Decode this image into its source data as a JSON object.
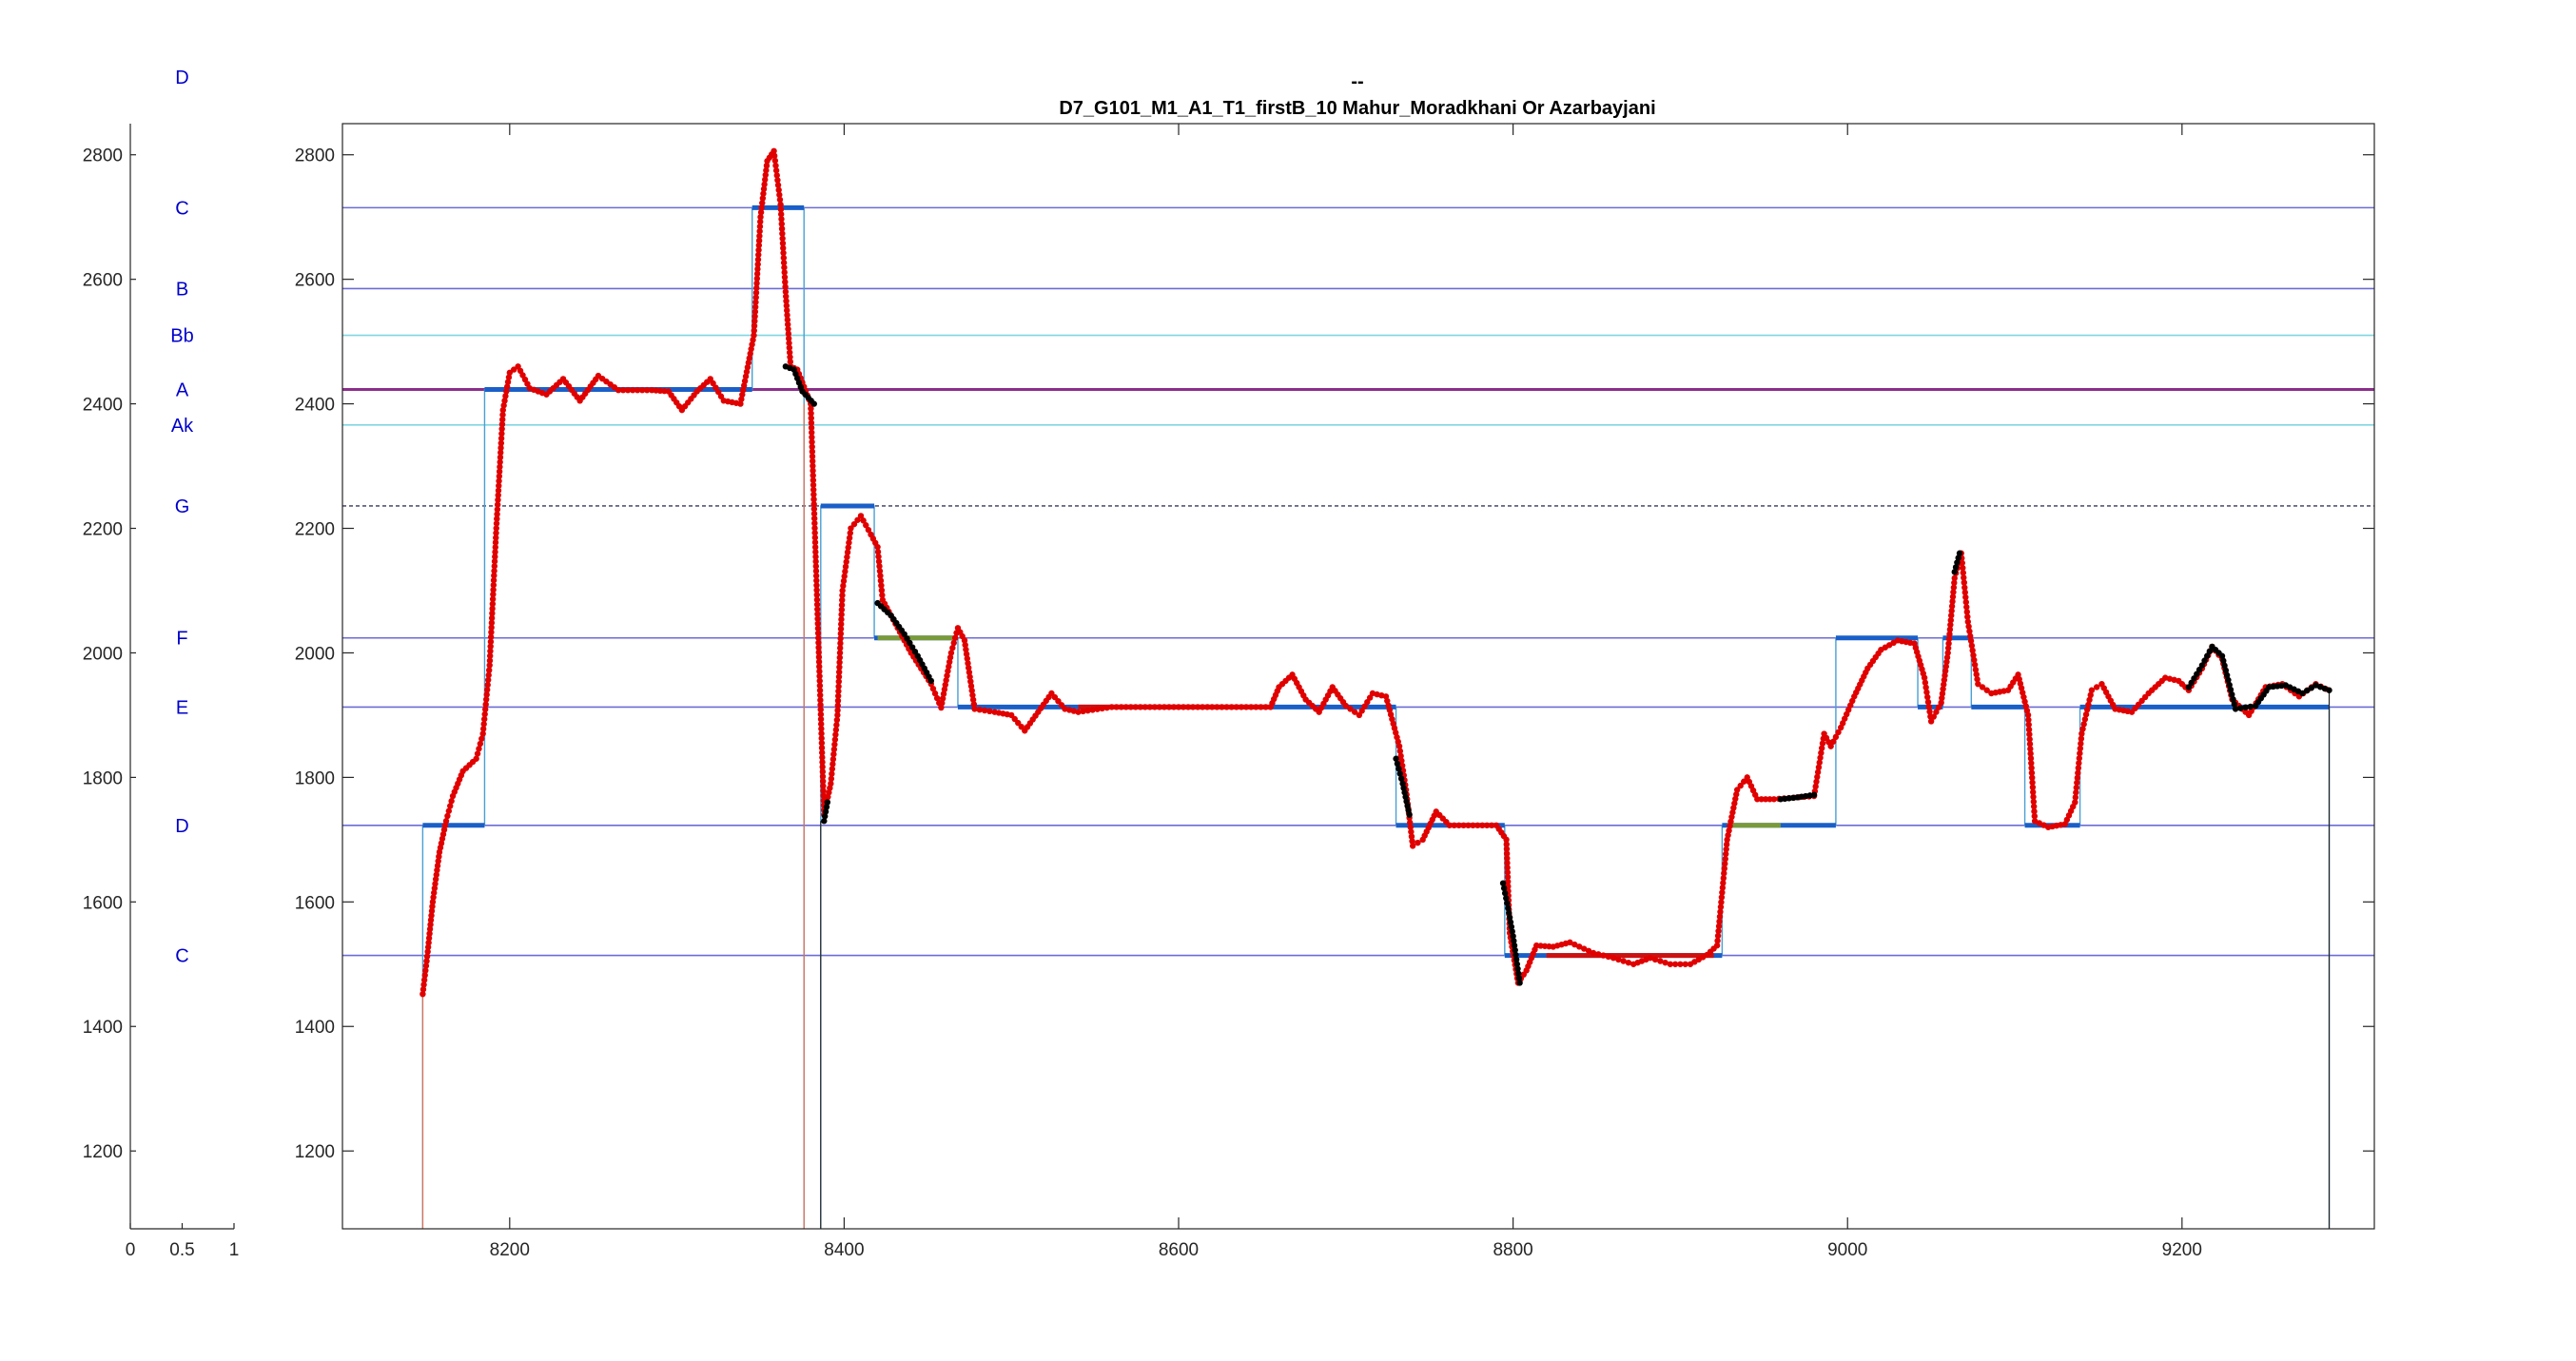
{
  "figure": {
    "title_line1": "--",
    "title_line2": "D7_G101_M1_A1_T1_firstB_10 Mahur_Moradkhani Or Azarbayjani"
  },
  "left_axis": {
    "xlim": [
      0,
      1
    ],
    "ylim": [
      1075,
      2850
    ],
    "x_ticks": [
      {
        "v": 0,
        "label": "0"
      },
      {
        "v": 0.5,
        "label": "0.5"
      },
      {
        "v": 1,
        "label": "1"
      }
    ],
    "y_ticks": [
      {
        "v": 1200,
        "label": "1200"
      },
      {
        "v": 1400,
        "label": "1400"
      },
      {
        "v": 1600,
        "label": "1600"
      },
      {
        "v": 1800,
        "label": "1800"
      },
      {
        "v": 2000,
        "label": "2000"
      },
      {
        "v": 2200,
        "label": "2200"
      },
      {
        "v": 2400,
        "label": "2400"
      },
      {
        "v": 2600,
        "label": "2600"
      },
      {
        "v": 2800,
        "label": "2800"
      }
    ],
    "note_labels": [
      {
        "y": 1514,
        "label": "C"
      },
      {
        "y": 1723,
        "label": "D"
      },
      {
        "y": 1913,
        "label": "E"
      },
      {
        "y": 2024,
        "label": "F"
      },
      {
        "y": 2236,
        "label": "G"
      },
      {
        "y": 2366,
        "label": "Ak"
      },
      {
        "y": 2423,
        "label": "A"
      },
      {
        "y": 2510,
        "label": "Bb"
      },
      {
        "y": 2585,
        "label": "B"
      },
      {
        "y": 2715,
        "label": "C"
      },
      {
        "y": 2925,
        "label": "D"
      }
    ]
  },
  "chart_data": {
    "type": "line",
    "title": "D7_G101_M1_A1_T1_firstB_10 Mahur_Moradkhani Or Azarbayjani",
    "xlim": [
      8100,
      9315
    ],
    "ylim": [
      1075,
      2850
    ],
    "x_ticks": [
      {
        "v": 8200,
        "label": "8200"
      },
      {
        "v": 8400,
        "label": "8400"
      },
      {
        "v": 8600,
        "label": "8600"
      },
      {
        "v": 8800,
        "label": "8800"
      },
      {
        "v": 9000,
        "label": "9000"
      },
      {
        "v": 9200,
        "label": "9200"
      }
    ],
    "y_ticks": [
      {
        "v": 1200,
        "label": "1200"
      },
      {
        "v": 1400,
        "label": "1400"
      },
      {
        "v": 1600,
        "label": "1600"
      },
      {
        "v": 1800,
        "label": "1800"
      },
      {
        "v": 2000,
        "label": "2000"
      },
      {
        "v": 2200,
        "label": "2200"
      },
      {
        "v": 2400,
        "label": "2400"
      },
      {
        "v": 2600,
        "label": "2600"
      },
      {
        "v": 2800,
        "label": "2800"
      }
    ],
    "grid": false,
    "reference_lines": [
      {
        "y": 1514,
        "color": "#6b6bd6",
        "style": "solid"
      },
      {
        "y": 1723,
        "color": "#6b6bd6",
        "style": "solid"
      },
      {
        "y": 1913,
        "color": "#6b6bd6",
        "style": "solid"
      },
      {
        "y": 2024,
        "color": "#6b6bd6",
        "style": "solid"
      },
      {
        "y": 2236,
        "color": "#555577",
        "style": "dashed"
      },
      {
        "y": 2366,
        "color": "#7fd6e0",
        "style": "solid"
      },
      {
        "y": 2423,
        "color": "#8b2f8b",
        "style": "thick"
      },
      {
        "y": 2510,
        "color": "#7fd6e0",
        "style": "solid"
      },
      {
        "y": 2585,
        "color": "#6b6bd6",
        "style": "solid"
      },
      {
        "y": 2715,
        "color": "#6b6bd6",
        "style": "solid"
      }
    ],
    "pitch_track": {
      "name": "pitch",
      "color": "#e00000",
      "points": [
        [
          8148,
          1452
        ],
        [
          8151,
          1520
        ],
        [
          8154,
          1600
        ],
        [
          8158,
          1680
        ],
        [
          8162,
          1730
        ],
        [
          8166,
          1770
        ],
        [
          8172,
          1810
        ],
        [
          8180,
          1830
        ],
        [
          8184,
          1870
        ],
        [
          8188,
          1980
        ],
        [
          8192,
          2200
        ],
        [
          8196,
          2390
        ],
        [
          8200,
          2450
        ],
        [
          8205,
          2460
        ],
        [
          8212,
          2425
        ],
        [
          8222,
          2415
        ],
        [
          8232,
          2440
        ],
        [
          8242,
          2405
        ],
        [
          8253,
          2445
        ],
        [
          8265,
          2422
        ],
        [
          8285,
          2422
        ],
        [
          8295,
          2420
        ],
        [
          8303,
          2390
        ],
        [
          8312,
          2420
        ],
        [
          8320,
          2440
        ],
        [
          8328,
          2405
        ],
        [
          8338,
          2400
        ],
        [
          8346,
          2510
        ],
        [
          8350,
          2700
        ],
        [
          8354,
          2790
        ],
        [
          8358,
          2806
        ],
        [
          8362,
          2720
        ],
        [
          8365,
          2580
        ],
        [
          8368,
          2460
        ],
        [
          8372,
          2455
        ],
        [
          8380,
          2400
        ],
        [
          8388,
          1740
        ],
        [
          8392,
          1790
        ],
        [
          8396,
          1900
        ],
        [
          8399,
          2100
        ],
        [
          8404,
          2200
        ],
        [
          8410,
          2220
        ],
        [
          8416,
          2190
        ],
        [
          8420,
          2170
        ],
        [
          8423,
          2085
        ],
        [
          8428,
          2060
        ],
        [
          8440,
          2000
        ],
        [
          8452,
          1950
        ],
        [
          8458,
          1912
        ],
        [
          8464,
          2000
        ],
        [
          8468,
          2040
        ],
        [
          8472,
          2020
        ],
        [
          8478,
          1910
        ],
        [
          8490,
          1905
        ],
        [
          8500,
          1900
        ],
        [
          8508,
          1875
        ],
        [
          8516,
          1905
        ],
        [
          8524,
          1935
        ],
        [
          8532,
          1910
        ],
        [
          8540,
          1905
        ],
        [
          8560,
          1913
        ],
        [
          8620,
          1913
        ],
        [
          8655,
          1913
        ],
        [
          8660,
          1945
        ],
        [
          8668,
          1965
        ],
        [
          8676,
          1925
        ],
        [
          8684,
          1905
        ],
        [
          8692,
          1945
        ],
        [
          8700,
          1915
        ],
        [
          8708,
          1900
        ],
        [
          8716,
          1935
        ],
        [
          8724,
          1930
        ],
        [
          8732,
          1850
        ],
        [
          8736,
          1780
        ],
        [
          8740,
          1690
        ],
        [
          8746,
          1700
        ],
        [
          8754,
          1745
        ],
        [
          8762,
          1723
        ],
        [
          8790,
          1723
        ],
        [
          8796,
          1700
        ],
        [
          8798,
          1550
        ],
        [
          8803,
          1470
        ],
        [
          8808,
          1490
        ],
        [
          8814,
          1530
        ],
        [
          8824,
          1528
        ],
        [
          8834,
          1535
        ],
        [
          8848,
          1518
        ],
        [
          8860,
          1510
        ],
        [
          8872,
          1500
        ],
        [
          8882,
          1510
        ],
        [
          8894,
          1500
        ],
        [
          8906,
          1500
        ],
        [
          8916,
          1515
        ],
        [
          8922,
          1530
        ],
        [
          8928,
          1700
        ],
        [
          8934,
          1780
        ],
        [
          8940,
          1800
        ],
        [
          8946,
          1765
        ],
        [
          8956,
          1765
        ],
        [
          8980,
          1770
        ],
        [
          8986,
          1870
        ],
        [
          8990,
          1850
        ],
        [
          8996,
          1880
        ],
        [
          9004,
          1930
        ],
        [
          9012,
          1975
        ],
        [
          9020,
          2005
        ],
        [
          9030,
          2020
        ],
        [
          9040,
          2015
        ],
        [
          9046,
          1960
        ],
        [
          9050,
          1890
        ],
        [
          9056,
          1920
        ],
        [
          9060,
          2000
        ],
        [
          9064,
          2120
        ],
        [
          9068,
          2160
        ],
        [
          9072,
          2050
        ],
        [
          9078,
          1950
        ],
        [
          9086,
          1935
        ],
        [
          9096,
          1940
        ],
        [
          9102,
          1965
        ],
        [
          9108,
          1900
        ],
        [
          9112,
          1730
        ],
        [
          9120,
          1720
        ],
        [
          9130,
          1725
        ],
        [
          9136,
          1760
        ],
        [
          9140,
          1870
        ],
        [
          9146,
          1940
        ],
        [
          9152,
          1950
        ],
        [
          9160,
          1910
        ],
        [
          9170,
          1905
        ],
        [
          9180,
          1935
        ],
        [
          9190,
          1960
        ],
        [
          9198,
          1955
        ],
        [
          9204,
          1940
        ],
        [
          9212,
          1975
        ],
        [
          9218,
          2010
        ],
        [
          9224,
          1990
        ],
        [
          9230,
          1925
        ],
        [
          9240,
          1900
        ],
        [
          9250,
          1945
        ],
        [
          9260,
          1950
        ],
        [
          9270,
          1930
        ],
        [
          9280,
          1950
        ],
        [
          9286,
          1942
        ]
      ]
    },
    "unvoiced_segments": [
      {
        "name": "unvoiced",
        "color": "#000000",
        "points": [
          [
            8365,
            2460
          ],
          [
            8370,
            2455
          ],
          [
            8375,
            2420
          ],
          [
            8382,
            2400
          ]
        ]
      },
      {
        "name": "unvoiced",
        "color": "#000000",
        "points": [
          [
            8388,
            1730
          ],
          [
            8390,
            1760
          ]
        ]
      },
      {
        "name": "unvoiced",
        "color": "#000000",
        "points": [
          [
            8420,
            2080
          ],
          [
            8428,
            2060
          ],
          [
            8436,
            2030
          ],
          [
            8444,
            1995
          ],
          [
            8452,
            1955
          ]
        ]
      },
      {
        "name": "unvoiced",
        "color": "#000000",
        "points": [
          [
            8730,
            1830
          ],
          [
            8734,
            1790
          ],
          [
            8738,
            1740
          ]
        ]
      },
      {
        "name": "unvoiced",
        "color": "#000000",
        "points": [
          [
            8794,
            1630
          ],
          [
            8797,
            1590
          ],
          [
            8800,
            1545
          ],
          [
            8804,
            1470
          ]
        ]
      },
      {
        "name": "unvoiced",
        "color": "#000000",
        "points": [
          [
            8960,
            1765
          ],
          [
            8970,
            1768
          ],
          [
            8980,
            1772
          ]
        ]
      },
      {
        "name": "unvoiced",
        "color": "#000000",
        "points": [
          [
            9064,
            2130
          ],
          [
            9067,
            2160
          ]
        ]
      },
      {
        "name": "unvoiced",
        "color": "#000000",
        "points": [
          [
            9204,
            1945
          ],
          [
            9212,
            1980
          ],
          [
            9218,
            2010
          ],
          [
            9224,
            1995
          ],
          [
            9232,
            1910
          ],
          [
            9244,
            1915
          ],
          [
            9252,
            1945
          ],
          [
            9262,
            1948
          ],
          [
            9272,
            1935
          ],
          [
            9280,
            1948
          ],
          [
            9288,
            1940
          ]
        ]
      }
    ],
    "note_segments": [
      {
        "x0": 8148,
        "x1": 8185,
        "y": 1723,
        "note": "D"
      },
      {
        "x0": 8185,
        "x1": 8345,
        "y": 2423,
        "note": "A"
      },
      {
        "x0": 8345,
        "x1": 8376,
        "y": 2715,
        "note": "C"
      },
      {
        "x0": 8386,
        "x1": 8418,
        "y": 2236,
        "note": "G"
      },
      {
        "x0": 8418,
        "x1": 8468,
        "y": 2024,
        "note": "F"
      },
      {
        "x0": 8468,
        "x1": 8730,
        "y": 1913,
        "note": "E"
      },
      {
        "x0": 8730,
        "x1": 8795,
        "y": 1723,
        "note": "D"
      },
      {
        "x0": 8795,
        "x1": 8925,
        "y": 1514,
        "note": "C"
      },
      {
        "x0": 8925,
        "x1": 8993,
        "y": 1723,
        "note": "D"
      },
      {
        "x0": 8993,
        "x1": 9042,
        "y": 2024,
        "note": "F"
      },
      {
        "x0": 9042,
        "x1": 9057,
        "y": 1913,
        "note": "E"
      },
      {
        "x0": 9057,
        "x1": 9074,
        "y": 2024,
        "note": "F"
      },
      {
        "x0": 9074,
        "x1": 9106,
        "y": 1913,
        "note": "E"
      },
      {
        "x0": 9106,
        "x1": 9139,
        "y": 1723,
        "note": "D"
      },
      {
        "x0": 9139,
        "x1": 9288,
        "y": 1913,
        "note": "E"
      }
    ],
    "highlight_segments": [
      {
        "x0": 8420,
        "x1": 8466,
        "y": 2024,
        "color": "#7a9a3a"
      },
      {
        "x0": 8928,
        "x1": 8960,
        "y": 1723,
        "color": "#7a9a3a"
      },
      {
        "x0": 8540,
        "x1": 8655,
        "y": 1913,
        "color": "#cc1111"
      },
      {
        "x0": 8820,
        "x1": 8920,
        "y": 1514,
        "color": "#cc1111"
      }
    ],
    "step_color": "#4a9fd4",
    "segment_color": "#1a5fc8"
  }
}
